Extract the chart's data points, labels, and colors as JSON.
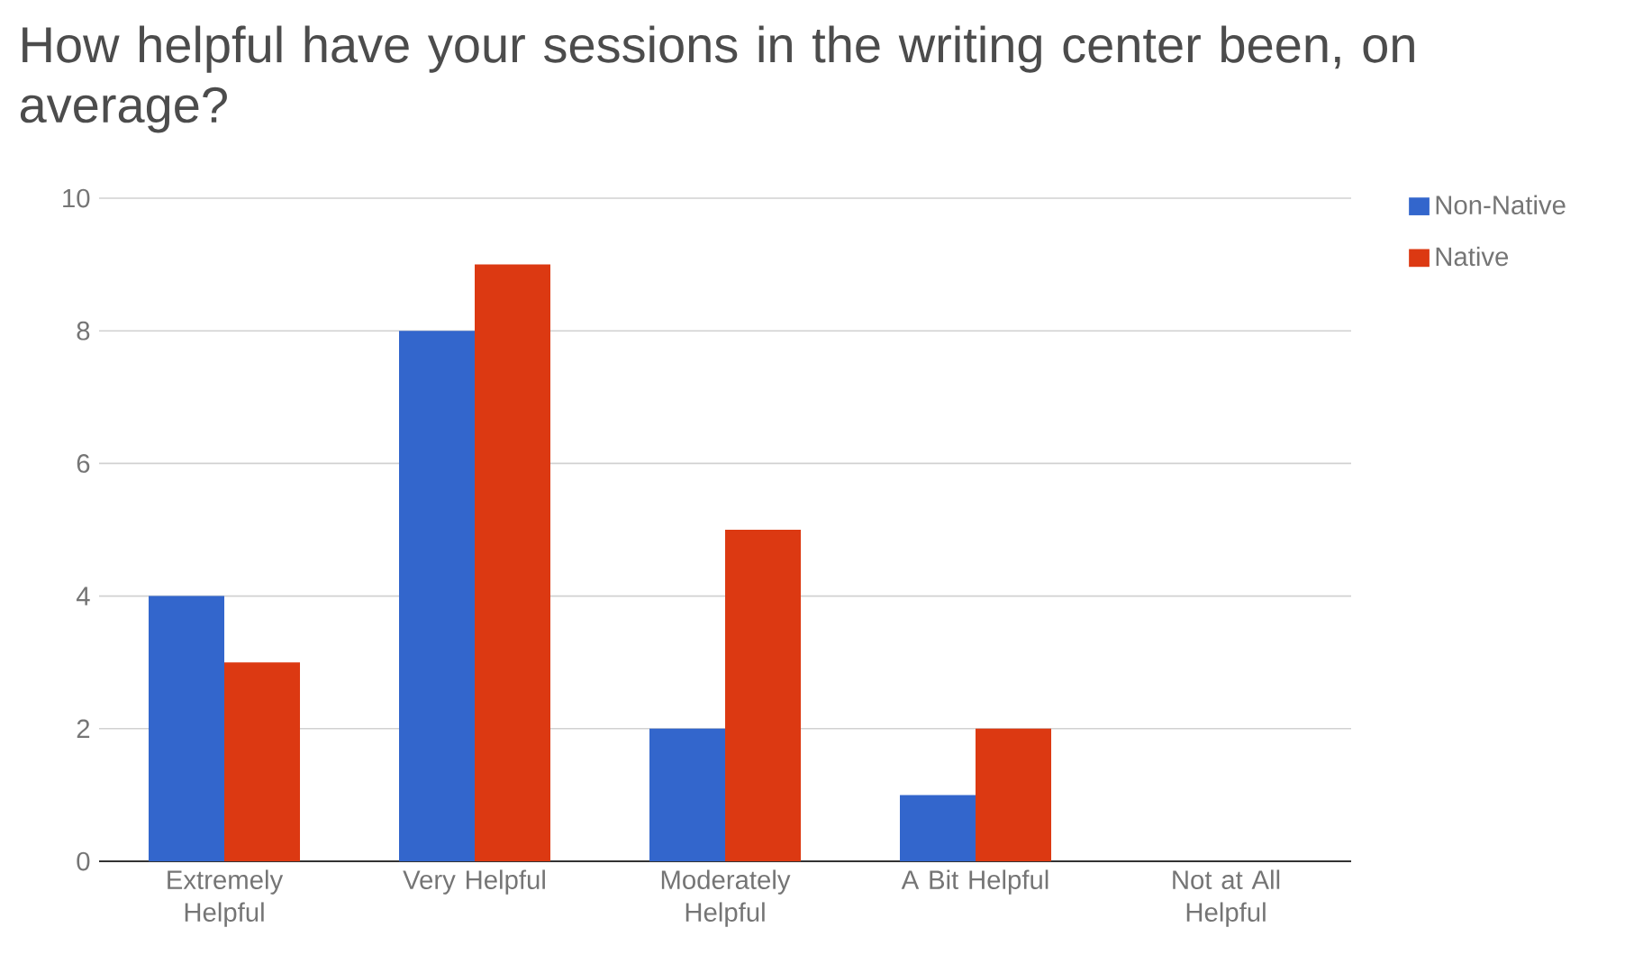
{
  "chart_data": {
    "type": "bar",
    "title": "How helpful have your sessions in the writing center been, on average?",
    "categories": [
      "Extremely Helpful",
      "Very Helpful",
      "Moderately Helpful",
      "A Bit Helpful",
      "Not at All Helpful"
    ],
    "series": [
      {
        "name": "Non-Native",
        "color": "#3366cc",
        "values": [
          4,
          8,
          2,
          1,
          0
        ]
      },
      {
        "name": "Native",
        "color": "#dc3912",
        "values": [
          3,
          9,
          5,
          2,
          0
        ]
      }
    ],
    "ylim": [
      0,
      10
    ],
    "yticks": [
      0,
      2,
      4,
      6,
      8,
      10
    ],
    "grid": "y",
    "legend": "top right"
  }
}
